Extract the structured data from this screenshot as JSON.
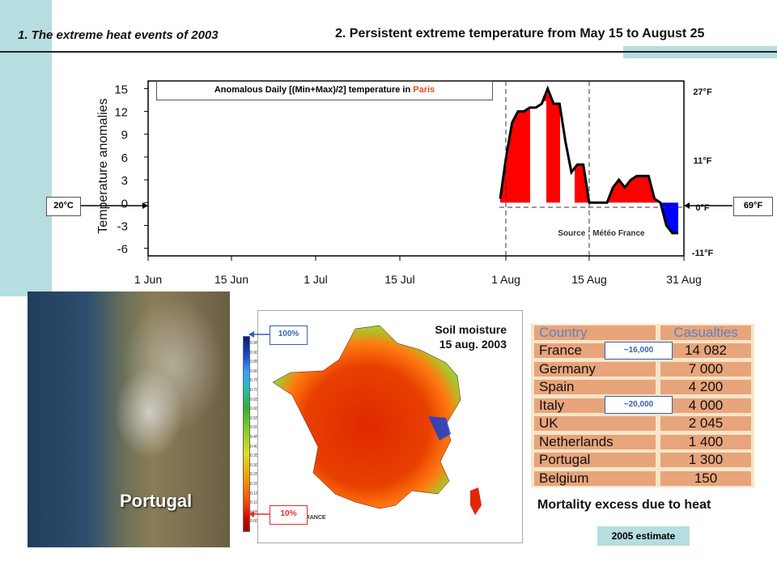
{
  "header": {
    "section1": "1. The extreme heat events of 2003",
    "section2": "2. Persistent extreme temperature from May 15 to August 25"
  },
  "chart": {
    "title_prefix": "Anomalous Daily [(Min+Max)/2] temperature in ",
    "title_city": "Paris",
    "ylabel": "Temperature anomalies",
    "source": "Source : Météo France",
    "left_marker": "20°C",
    "right_marker": "69°F",
    "yticks": [
      "15",
      "12",
      "9",
      "6",
      "3",
      "0",
      "-3",
      "-6"
    ],
    "xticks": [
      "1 Jun",
      "15 Jun",
      "1 Jul",
      "15 Jul",
      "1 Aug",
      "15 Aug",
      "31 Aug"
    ],
    "right_ticks": [
      "27°F",
      "11°F",
      "0°F",
      "-11°F"
    ]
  },
  "chart_data": {
    "type": "area",
    "title": "Anomalous Daily [(Min+Max)/2] temperature in Paris",
    "ylabel": "Temperature anomalies",
    "ylim": [
      -7,
      16
    ],
    "x": [
      "1 Aug",
      "2 Aug",
      "3 Aug",
      "4 Aug",
      "5 Aug",
      "6 Aug",
      "7 Aug",
      "8 Aug",
      "9 Aug",
      "10 Aug",
      "11 Aug",
      "12 Aug",
      "13 Aug",
      "14 Aug",
      "15 Aug",
      "16 Aug",
      "17 Aug",
      "18 Aug",
      "19 Aug",
      "20 Aug",
      "21 Aug",
      "22 Aug",
      "23 Aug",
      "24 Aug",
      "25 Aug",
      "26 Aug",
      "27 Aug",
      "28 Aug",
      "29 Aug",
      "30 Aug",
      "31 Aug"
    ],
    "values": [
      0.5,
      6,
      10.5,
      12,
      12,
      12.5,
      12.5,
      13,
      15,
      13,
      13,
      8,
      4,
      5,
      5,
      0,
      0,
      0,
      0,
      2,
      3,
      2,
      3,
      3.5,
      3.5,
      3.5,
      0.5,
      0,
      -3,
      -4,
      -4
    ],
    "grid": false,
    "colors": {
      "positive": "#ff0000",
      "negative": "#0000ff",
      "line": "#000000"
    }
  },
  "satellite": {
    "label": "Portugal"
  },
  "soil": {
    "title_line1": "Soil moisture",
    "title_line2": "15 aug. 2003",
    "top_label": "100%",
    "bottom_label": "10%",
    "scale_ticks": [
      "0.95",
      "0.90",
      "0.85",
      "0.80",
      "0.75",
      "0.70",
      "0.65",
      "0.60",
      "0.55",
      "0.50",
      "0.45",
      "0.40",
      "0.35",
      "0.30",
      "0.25",
      "0.20",
      "0.15",
      "0.10",
      "0.05",
      "0.00"
    ],
    "watermark": "O FRANCE"
  },
  "mortality": {
    "headers": [
      "Country",
      "Casualties"
    ],
    "rows": [
      {
        "country": "France",
        "casualties": "14 082"
      },
      {
        "country": "Germany",
        "casualties": "7 000"
      },
      {
        "country": "Spain",
        "casualties": "4 200"
      },
      {
        "country": "Italy",
        "casualties": "4 000"
      },
      {
        "country": "UK",
        "casualties": "2 045"
      },
      {
        "country": "Netherlands",
        "casualties": "1 400"
      },
      {
        "country": "Portugal",
        "casualties": "1 300"
      },
      {
        "country": "Belgium",
        "casualties": "150"
      }
    ],
    "france_estimate": "~16,000",
    "italy_estimate": "~20,000",
    "caption": "Mortality excess due to heat",
    "estimate_note": "2005 estimate"
  },
  "colors": {
    "accent_band": "#b6dde0",
    "table_bg": "#e8a47b",
    "header_text": "#5a83c4"
  }
}
